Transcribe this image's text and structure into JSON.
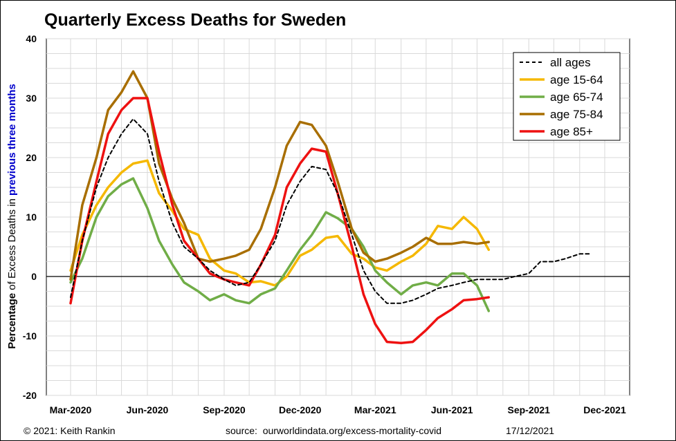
{
  "chart_data": {
    "type": "line",
    "title": "Quarterly Excess Deaths for Sweden",
    "ylabel_parts": [
      "Percentage",
      " of Excess Deaths in ",
      "previous three months"
    ],
    "ylabel_colors": [
      "#000000",
      "#000000",
      "#0000cc"
    ],
    "xlabel": "",
    "ylim": [
      -20,
      40
    ],
    "yticks": [
      -20,
      -10,
      0,
      10,
      20,
      30,
      40
    ],
    "xlim": [
      "2020-03-01",
      "2021-12-01"
    ],
    "xticks": [
      {
        "date": "2020-03-01",
        "label": "Mar-2020"
      },
      {
        "date": "2020-06-01",
        "label": "Jun-2020"
      },
      {
        "date": "2020-09-01",
        "label": "Sep-2020"
      },
      {
        "date": "2020-12-01",
        "label": "Dec-2020"
      },
      {
        "date": "2021-03-01",
        "label": "Mar-2021"
      },
      {
        "date": "2021-06-01",
        "label": "Jun-2021"
      },
      {
        "date": "2021-09-01",
        "label": "Sep-2021"
      },
      {
        "date": "2021-12-01",
        "label": "Dec-2021"
      }
    ],
    "grid": true,
    "legend_position": "top-right",
    "series": [
      {
        "name": "age 15-64",
        "color": "#f5b800",
        "dash": false,
        "x": [
          "2020-03-01",
          "2020-03-15",
          "2020-04-01",
          "2020-04-15",
          "2020-05-01",
          "2020-05-15",
          "2020-06-01",
          "2020-06-15",
          "2020-07-01",
          "2020-07-15",
          "2020-08-01",
          "2020-08-15",
          "2020-09-01",
          "2020-09-15",
          "2020-10-01",
          "2020-10-15",
          "2020-11-01",
          "2020-11-15",
          "2020-12-01",
          "2020-12-15",
          "2021-01-01",
          "2021-01-15",
          "2021-02-01",
          "2021-02-15",
          "2021-03-01",
          "2021-03-15",
          "2021-04-01",
          "2021-04-15",
          "2021-05-01",
          "2021-05-15",
          "2021-06-01",
          "2021-06-15",
          "2021-07-01",
          "2021-07-15"
        ],
        "y": [
          1,
          7,
          12,
          15,
          17.5,
          19,
          19.5,
          14,
          11,
          8,
          7,
          3,
          1,
          0.5,
          -1,
          -0.8,
          -1.5,
          0,
          3.5,
          4.5,
          6.5,
          6.8,
          3.8,
          3,
          1.5,
          1,
          2.5,
          3.5,
          5.5,
          8.5,
          8,
          10,
          8,
          4.5
        ]
      },
      {
        "name": "age 65-74",
        "color": "#70ad47",
        "dash": false,
        "x": [
          "2020-03-01",
          "2020-03-15",
          "2020-04-01",
          "2020-04-15",
          "2020-05-01",
          "2020-05-15",
          "2020-06-01",
          "2020-06-15",
          "2020-07-01",
          "2020-07-15",
          "2020-08-01",
          "2020-08-15",
          "2020-09-01",
          "2020-09-15",
          "2020-10-01",
          "2020-10-15",
          "2020-11-01",
          "2020-11-15",
          "2020-12-01",
          "2020-12-15",
          "2021-01-01",
          "2021-01-15",
          "2021-02-01",
          "2021-02-15",
          "2021-03-01",
          "2021-03-15",
          "2021-04-01",
          "2021-04-15",
          "2021-05-01",
          "2021-05-15",
          "2021-06-01",
          "2021-06-15",
          "2021-07-01",
          "2021-07-15"
        ],
        "y": [
          -1,
          3,
          10,
          13.5,
          15.5,
          16.5,
          11.5,
          6,
          2,
          -1,
          -2.5,
          -4,
          -3,
          -4,
          -4.5,
          -3,
          -2,
          1,
          4.5,
          7,
          10.8,
          9.8,
          8,
          5,
          1,
          -1,
          -3,
          -1.5,
          -1,
          -1.5,
          0.5,
          0.5,
          -1.5,
          -5.8
        ]
      },
      {
        "name": "age 75-84",
        "color": "#a86e00",
        "dash": false,
        "x": [
          "2020-03-01",
          "2020-03-15",
          "2020-04-01",
          "2020-04-15",
          "2020-05-01",
          "2020-05-15",
          "2020-06-01",
          "2020-06-15",
          "2020-07-01",
          "2020-07-15",
          "2020-08-01",
          "2020-08-15",
          "2020-09-01",
          "2020-09-15",
          "2020-10-01",
          "2020-10-15",
          "2020-11-01",
          "2020-11-15",
          "2020-12-01",
          "2020-12-15",
          "2021-01-01",
          "2021-01-15",
          "2021-02-01",
          "2021-02-15",
          "2021-03-01",
          "2021-03-15",
          "2021-04-01",
          "2021-04-15",
          "2021-05-01",
          "2021-05-15",
          "2021-06-01",
          "2021-06-15",
          "2021-07-01",
          "2021-07-15"
        ],
        "y": [
          -0.5,
          12,
          20,
          28,
          31,
          34.5,
          30,
          19,
          13,
          9,
          3,
          2.5,
          3,
          3.5,
          4.5,
          8,
          15,
          22,
          26,
          25.5,
          22,
          16,
          8,
          4,
          2.5,
          3,
          4,
          5,
          6.5,
          5.5,
          5.5,
          5.8,
          5.5,
          5.8
        ]
      },
      {
        "name": "age 85+",
        "color": "#ee1111",
        "dash": false,
        "x": [
          "2020-03-01",
          "2020-03-15",
          "2020-04-01",
          "2020-04-15",
          "2020-05-01",
          "2020-05-15",
          "2020-06-01",
          "2020-06-15",
          "2020-07-01",
          "2020-07-15",
          "2020-08-01",
          "2020-08-15",
          "2020-09-01",
          "2020-09-15",
          "2020-10-01",
          "2020-10-15",
          "2020-11-01",
          "2020-11-15",
          "2020-12-01",
          "2020-12-15",
          "2021-01-01",
          "2021-01-15",
          "2021-02-01",
          "2021-02-15",
          "2021-03-01",
          "2021-03-15",
          "2021-04-01",
          "2021-04-15",
          "2021-05-01",
          "2021-05-15",
          "2021-06-01",
          "2021-06-15",
          "2021-07-01",
          "2021-07-15"
        ],
        "y": [
          -4.5,
          6,
          16,
          24,
          28,
          30,
          30,
          21,
          12,
          6,
          3,
          0.5,
          -0.5,
          -1,
          -1.5,
          2,
          7,
          15,
          19,
          21.5,
          21,
          14,
          5,
          -3,
          -8,
          -11,
          -11.2,
          -11,
          -9,
          -7,
          -5.5,
          -4,
          -3.8,
          -3.5
        ]
      },
      {
        "name": "all ages",
        "color": "#000000",
        "dash": true,
        "x": [
          "2020-03-01",
          "2020-03-15",
          "2020-04-01",
          "2020-04-15",
          "2020-05-01",
          "2020-05-15",
          "2020-06-01",
          "2020-06-15",
          "2020-07-01",
          "2020-07-15",
          "2020-08-01",
          "2020-08-15",
          "2020-09-01",
          "2020-09-15",
          "2020-10-01",
          "2020-10-15",
          "2020-11-01",
          "2020-11-15",
          "2020-12-01",
          "2020-12-15",
          "2021-01-01",
          "2021-01-15",
          "2021-02-01",
          "2021-02-15",
          "2021-03-01",
          "2021-03-15",
          "2021-04-01",
          "2021-04-15",
          "2021-05-01",
          "2021-05-15",
          "2021-06-01",
          "2021-06-15",
          "2021-07-01",
          "2021-07-15",
          "2021-08-01",
          "2021-08-15",
          "2021-09-01",
          "2021-09-15",
          "2021-10-01",
          "2021-10-15",
          "2021-11-01",
          "2021-11-15"
        ],
        "y": [
          -3.5,
          6,
          15,
          20,
          24,
          26.5,
          24,
          16,
          9,
          5,
          3,
          1,
          -0.5,
          -1.5,
          -1,
          2,
          6,
          12,
          16,
          18.5,
          18,
          14,
          7,
          1,
          -2.5,
          -4.5,
          -4.5,
          -4,
          -3,
          -2,
          -1.5,
          -1,
          -0.5,
          -0.5,
          -0.5,
          0,
          0.5,
          2.5,
          2.5,
          3,
          3.8,
          3.8
        ]
      }
    ],
    "legend_order": [
      "all ages",
      "age 15-64",
      "age 65-74",
      "age 75-84",
      "age 85+"
    ]
  },
  "footer": {
    "copyright": "© 2021: Keith Rankin",
    "source": "source:  ourworldindata.org/excess-mortality-covid",
    "date": "17/12/2021"
  }
}
